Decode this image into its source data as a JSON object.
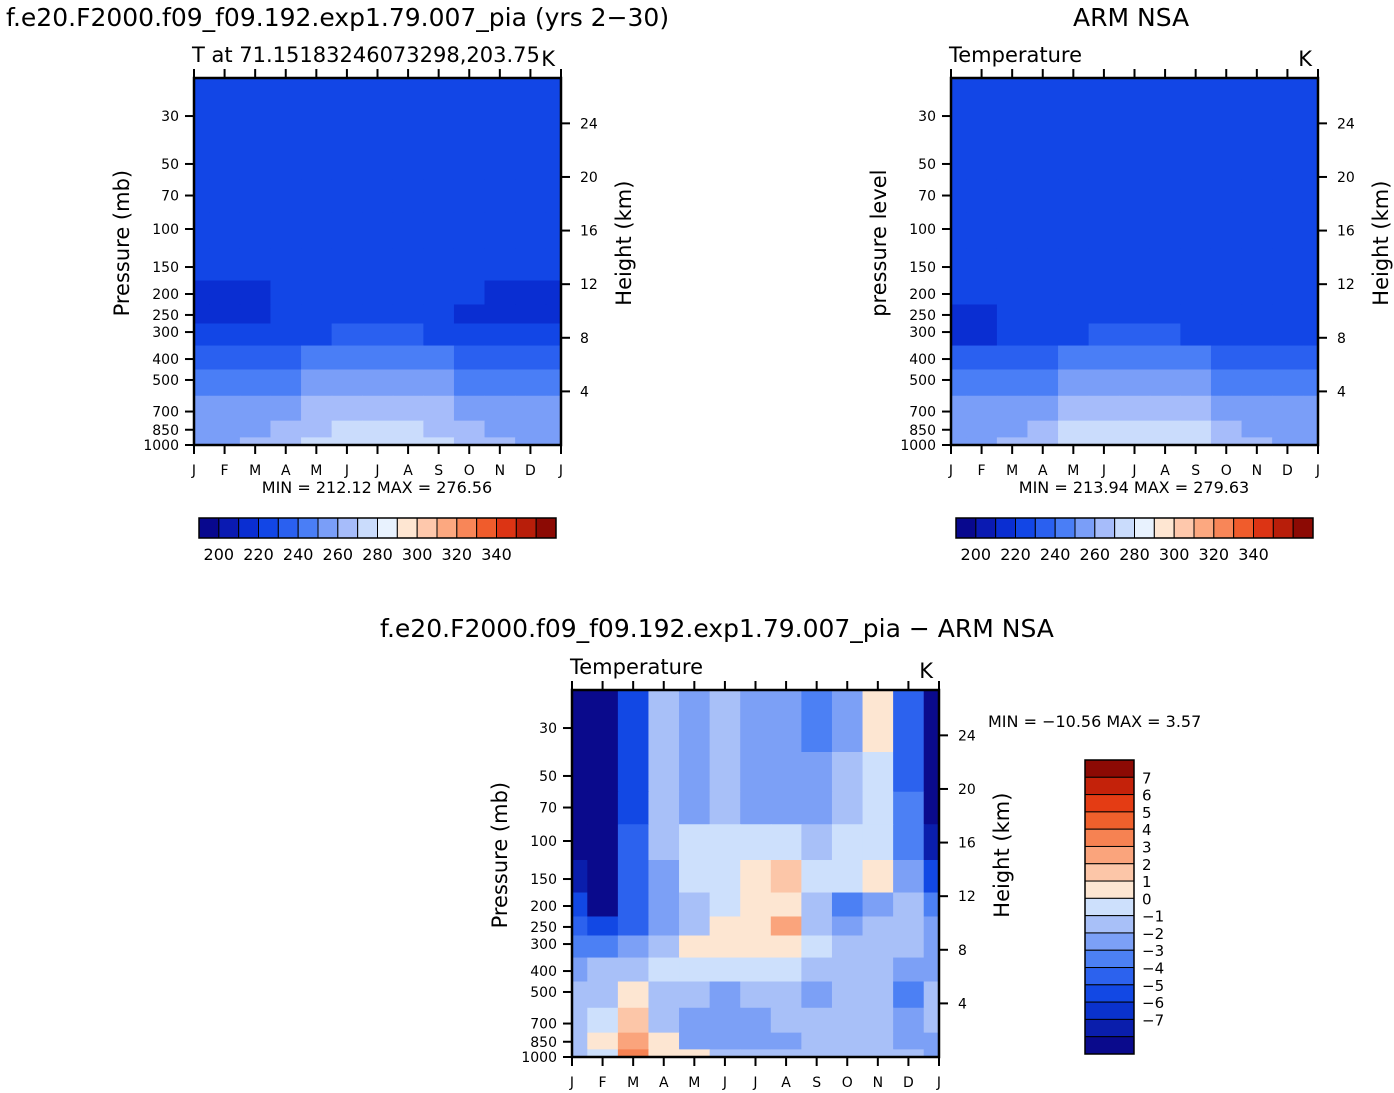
{
  "header": {
    "case_title": "f.e20.F2000.f09_f09.192.exp1.79.007_pia (yrs 2−30)",
    "obs_title": "ARM NSA",
    "diff_title": "f.e20.F2000.f09_f09.192.exp1.79.007_pia − ARM NSA"
  },
  "colors": {
    "abs_scale": [
      "#08088e",
      "#0a1ab2",
      "#0a2ed2",
      "#1246e6",
      "#2a60f0",
      "#4a7ef6",
      "#7a9ef8",
      "#a6bcfa",
      "#cadcfc",
      "#e8f2fe",
      "#fee6d2",
      "#fec8ac",
      "#fca880",
      "#f88658",
      "#f05c2c",
      "#dc3414",
      "#b81e0a",
      "#8c0a04"
    ],
    "diff_scale": [
      "#0a0a8c",
      "#0a1eac",
      "#0a32cc",
      "#1248e4",
      "#2c62ee",
      "#4c80f4",
      "#7ca0f6",
      "#a8c0f8",
      "#cde0fc",
      "#fde6d2",
      "#fcc6a8",
      "#faa47c",
      "#f68252",
      "#f0602c",
      "#e43c14",
      "#c4220a",
      "#8c0a04"
    ]
  },
  "chart_data": [
    {
      "id": "model",
      "type": "heatmap",
      "title": "T at 71.15183246073298,203.75",
      "units": "K",
      "ylabel": "Pressure (mb)",
      "ylabel_right": "Height (km)",
      "stats": "MIN = 212.12 MAX = 276.56",
      "x_ticks": [
        "J",
        "F",
        "M",
        "A",
        "M",
        "J",
        "J",
        "A",
        "S",
        "O",
        "N",
        "D",
        "J"
      ],
      "y_ticks": [
        "30",
        "50",
        "70",
        "100",
        "150",
        "200",
        "250",
        "300",
        "400",
        "500",
        "700",
        "850",
        "1000"
      ],
      "y_ticks_right": [
        "24",
        "20",
        "16",
        "12",
        "8",
        "4"
      ],
      "colorbar_labels": [
        "200",
        "220",
        "240",
        "260",
        "280",
        "300",
        "320",
        "340"
      ],
      "ylim": [
        1000,
        20
      ],
      "x": [
        "J",
        "F",
        "M",
        "A",
        "M",
        "J",
        "J",
        "A",
        "S",
        "O",
        "N",
        "D",
        "J"
      ],
      "y": [
        30,
        50,
        70,
        100,
        150,
        200,
        250,
        300,
        400,
        500,
        700,
        850,
        1000
      ],
      "z": [
        [
          220,
          220,
          220,
          228,
          228,
          228,
          228,
          228,
          228,
          220,
          220,
          220,
          220
        ],
        [
          220,
          220,
          220,
          228,
          228,
          228,
          228,
          228,
          228,
          222,
          220,
          220,
          220
        ],
        [
          220,
          220,
          220,
          228,
          228,
          228,
          228,
          228,
          228,
          225,
          220,
          220,
          220
        ],
        [
          220,
          220,
          220,
          228,
          228,
          228,
          228,
          228,
          228,
          228,
          222,
          220,
          220
        ],
        [
          220,
          220,
          220,
          228,
          228,
          228,
          228,
          228,
          228,
          228,
          224,
          220,
          220
        ],
        [
          219,
          219,
          219,
          222,
          228,
          228,
          228,
          228,
          226,
          220,
          219,
          219,
          219
        ],
        [
          219,
          219,
          219,
          222,
          228,
          228,
          228,
          228,
          224,
          219,
          219,
          219,
          219
        ],
        [
          222,
          222,
          224,
          227,
          229,
          230,
          232,
          230,
          229,
          227,
          223,
          222,
          222
        ],
        [
          234,
          234,
          236,
          238,
          240,
          242,
          243,
          242,
          240,
          238,
          236,
          234,
          234
        ],
        [
          242,
          242,
          244,
          246,
          250,
          252,
          254,
          252,
          250,
          246,
          244,
          242,
          242
        ],
        [
          250,
          250,
          253,
          256,
          260,
          264,
          266,
          264,
          260,
          256,
          253,
          250,
          250
        ],
        [
          256,
          256,
          258,
          262,
          268,
          273,
          276,
          274,
          268,
          262,
          258,
          256,
          256
        ],
        [
          258,
          258,
          260,
          264,
          270,
          276,
          277,
          276,
          270,
          264,
          260,
          258,
          258
        ]
      ]
    },
    {
      "id": "obs",
      "type": "heatmap",
      "title": "Temperature",
      "units": "K",
      "ylabel": "pressure level",
      "ylabel_right": "Height (km)",
      "stats": "MIN = 213.94 MAX = 279.63",
      "x_ticks": [
        "J",
        "F",
        "M",
        "A",
        "M",
        "J",
        "J",
        "A",
        "S",
        "O",
        "N",
        "D",
        "J"
      ],
      "y_ticks": [
        "30",
        "50",
        "70",
        "100",
        "150",
        "200",
        "250",
        "300",
        "400",
        "500",
        "700",
        "850",
        "1000"
      ],
      "y_ticks_right": [
        "24",
        "20",
        "16",
        "12",
        "8",
        "4"
      ],
      "colorbar_labels": [
        "200",
        "220",
        "240",
        "260",
        "280",
        "300",
        "320",
        "340"
      ],
      "ylim": [
        1000,
        20
      ],
      "x": [
        "J",
        "F",
        "M",
        "A",
        "M",
        "J",
        "J",
        "A",
        "S",
        "O",
        "N",
        "D",
        "J"
      ],
      "y": [
        30,
        50,
        70,
        100,
        150,
        200,
        250,
        300,
        400,
        500,
        700,
        850,
        1000
      ],
      "z": [
        [
          228,
          228,
          228,
          228,
          228,
          228,
          224,
          228,
          228,
          228,
          220,
          220,
          222
        ],
        [
          228,
          228,
          228,
          228,
          228,
          228,
          228,
          228,
          228,
          228,
          220,
          220,
          224
        ],
        [
          228,
          228,
          228,
          228,
          228,
          228,
          228,
          228,
          228,
          228,
          222,
          220,
          226
        ],
        [
          228,
          228,
          228,
          228,
          228,
          228,
          228,
          228,
          228,
          228,
          224,
          220,
          227
        ],
        [
          226,
          228,
          228,
          228,
          228,
          228,
          228,
          228,
          228,
          228,
          226,
          222,
          228
        ],
        [
          220,
          224,
          228,
          228,
          228,
          228,
          228,
          228,
          228,
          228,
          224,
          222,
          224
        ],
        [
          218,
          219,
          222,
          228,
          228,
          228,
          228,
          228,
          228,
          224,
          220,
          220,
          222
        ],
        [
          218,
          219,
          224,
          228,
          229,
          230,
          232,
          230,
          229,
          226,
          222,
          220,
          222
        ],
        [
          232,
          233,
          236,
          238,
          241,
          242,
          243,
          242,
          240,
          238,
          235,
          233,
          232
        ],
        [
          242,
          242,
          244,
          247,
          250,
          253,
          254,
          253,
          250,
          247,
          244,
          242,
          242
        ],
        [
          252,
          252,
          255,
          258,
          262,
          266,
          268,
          266,
          262,
          258,
          255,
          252,
          252
        ],
        [
          256,
          256,
          259,
          263,
          270,
          276,
          278,
          277,
          270,
          264,
          259,
          256,
          256
        ],
        [
          259,
          259,
          262,
          266,
          272,
          278,
          279,
          278,
          272,
          266,
          262,
          259,
          259
        ]
      ]
    },
    {
      "id": "diff",
      "type": "heatmap",
      "title": "Temperature",
      "units": "K",
      "ylabel": "Pressure (mb)",
      "ylabel_right": "Height (km)",
      "stats": "MIN = −10.56 MAX =    3.57",
      "x_ticks": [
        "J",
        "F",
        "M",
        "A",
        "M",
        "J",
        "J",
        "A",
        "S",
        "O",
        "N",
        "D",
        "J"
      ],
      "y_ticks": [
        "30",
        "50",
        "70",
        "100",
        "150",
        "200",
        "250",
        "300",
        "400",
        "500",
        "700",
        "850",
        "1000"
      ],
      "y_ticks_right": [
        "24",
        "20",
        "16",
        "12",
        "8",
        "4"
      ],
      "colorbar_labels": [
        "7",
        "6",
        "5",
        "4",
        "3",
        "2",
        "1",
        "0",
        "−1",
        "−2",
        "−3",
        "−4",
        "−5",
        "−6",
        "−7"
      ],
      "ylim": [
        1000,
        20
      ],
      "x": [
        "J",
        "F",
        "M",
        "A",
        "M",
        "J",
        "J",
        "A",
        "S",
        "O",
        "N",
        "D",
        "J"
      ],
      "y": [
        30,
        50,
        70,
        100,
        150,
        200,
        250,
        300,
        400,
        500,
        700,
        850,
        1000
      ],
      "z": [
        [
          -9,
          -9,
          -5,
          -1.5,
          -2,
          -1.5,
          -2,
          -2.5,
          -3.5,
          -2.5,
          0.5,
          -4,
          -9
        ],
        [
          -9,
          -9,
          -5,
          -1.5,
          -2.5,
          -1.5,
          -2,
          -2.5,
          -2.5,
          -1.5,
          -0.5,
          -4,
          -9
        ],
        [
          -9,
          -9,
          -5,
          -1.5,
          -2,
          -1.5,
          -2,
          -2,
          -2,
          -1,
          -0.5,
          -3.5,
          -8
        ],
        [
          -9,
          -9,
          -4.5,
          -1.5,
          -0.5,
          -0.5,
          -0.5,
          -0.5,
          -1,
          -0.5,
          -0.5,
          -3,
          -7
        ],
        [
          -7,
          -9,
          -4.5,
          -2,
          -0.5,
          -0.5,
          0.5,
          1.5,
          -0.5,
          -0.5,
          0.5,
          -2,
          -5
        ],
        [
          -5,
          -8,
          -4,
          -2.5,
          -1.5,
          -0.5,
          0.5,
          1,
          -1,
          -3.5,
          -2,
          -1.5,
          -3
        ],
        [
          -4,
          -5,
          -4,
          -2,
          -1.5,
          0.5,
          1,
          2.5,
          -1,
          -2.5,
          -1.5,
          -1.5,
          -2
        ],
        [
          -3,
          -3.5,
          -2.5,
          -1,
          0.5,
          0.5,
          0.5,
          0.5,
          -0.5,
          -1.5,
          -1.5,
          -1.5,
          -2
        ],
        [
          -2,
          -1.5,
          -1,
          -0.5,
          -0.5,
          -0.5,
          -0.5,
          -0.5,
          -1.5,
          -1.5,
          -1,
          -2.5,
          -2
        ],
        [
          -1.5,
          -1,
          0.5,
          -1,
          -1.5,
          -2,
          -1.5,
          -1.5,
          -2,
          -1.5,
          -1,
          -3.5,
          -1.5
        ],
        [
          -1.5,
          -0.5,
          1.5,
          -1,
          -2,
          -2,
          -2,
          -1.5,
          -1.5,
          -1.5,
          -1,
          -2,
          -1.5
        ],
        [
          -1.5,
          0.5,
          2.5,
          0.5,
          -2,
          -2,
          -2.5,
          -2,
          -1.5,
          -1.5,
          -1,
          -2.5,
          -2
        ],
        [
          -1.5,
          -0.5,
          3.5,
          0.5,
          0.5,
          -1.5,
          -1.5,
          -1.5,
          -1.5,
          -1.5,
          -1.5,
          -1.5,
          -2
        ]
      ]
    }
  ]
}
